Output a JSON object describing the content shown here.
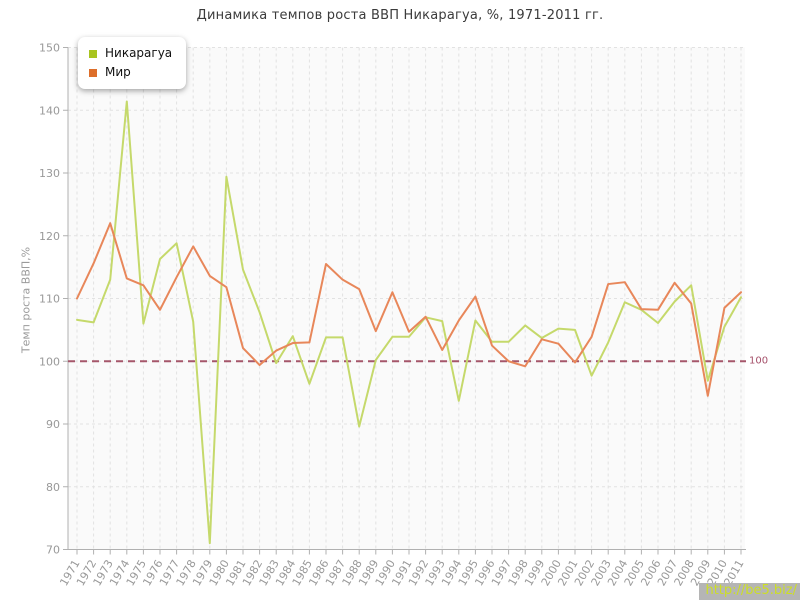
{
  "watermark": "http://be5.biz/",
  "chart_data": {
    "type": "line",
    "title": "Динамика темпов роста ВВП Никарагуа, %, 1971-2011 гг.",
    "xlabel": "",
    "ylabel": "Темп роста ВВП,%",
    "ylim": [
      70,
      150
    ],
    "yticks": [
      70,
      80,
      90,
      100,
      110,
      120,
      130,
      140,
      150
    ],
    "grid": true,
    "legend_position": "top-left",
    "ref_line": {
      "value": 100,
      "label": "100",
      "color": "#a5566a"
    },
    "x": [
      1971,
      1972,
      1973,
      1974,
      1975,
      1976,
      1977,
      1978,
      1979,
      1980,
      1981,
      1982,
      1983,
      1984,
      1985,
      1986,
      1987,
      1988,
      1989,
      1990,
      1991,
      1992,
      1993,
      1994,
      1995,
      1996,
      1997,
      1998,
      1999,
      2000,
      2001,
      2002,
      2003,
      2004,
      2005,
      2006,
      2007,
      2008,
      2009,
      2010,
      2011
    ],
    "series": [
      {
        "name": "Никарагуа",
        "color": "#a8c41f",
        "line_color": "#c5d96b",
        "values": [
          106.6,
          106.2,
          113.0,
          141.4,
          106.0,
          116.3,
          118.8,
          106.3,
          71.0,
          129.4,
          114.6,
          107.8,
          99.7,
          104.0,
          96.4,
          103.8,
          103.8,
          89.6,
          100.2,
          103.9,
          103.9,
          107.0,
          106.4,
          93.7,
          106.5,
          103.1,
          103.1,
          105.7,
          103.7,
          105.2,
          105.0,
          97.7,
          103.0,
          109.4,
          108.2,
          106.1,
          109.5,
          112.1,
          96.9,
          105.5,
          110.2
        ]
      },
      {
        "name": "Мир",
        "color": "#dd6e2a",
        "line_color": "#e8875a",
        "values": [
          110.0,
          115.6,
          122.0,
          113.2,
          112.1,
          108.2,
          113.4,
          118.3,
          113.6,
          111.8,
          102.1,
          99.4,
          101.7,
          102.9,
          103.0,
          115.5,
          113.0,
          111.5,
          104.8,
          111.0,
          104.7,
          107.1,
          101.8,
          106.5,
          110.3,
          102.5,
          100.0,
          99.2,
          103.5,
          102.8,
          99.8,
          103.9,
          112.3,
          112.6,
          108.3,
          108.2,
          112.5,
          109.2,
          94.5,
          108.5,
          111.0
        ]
      }
    ]
  }
}
